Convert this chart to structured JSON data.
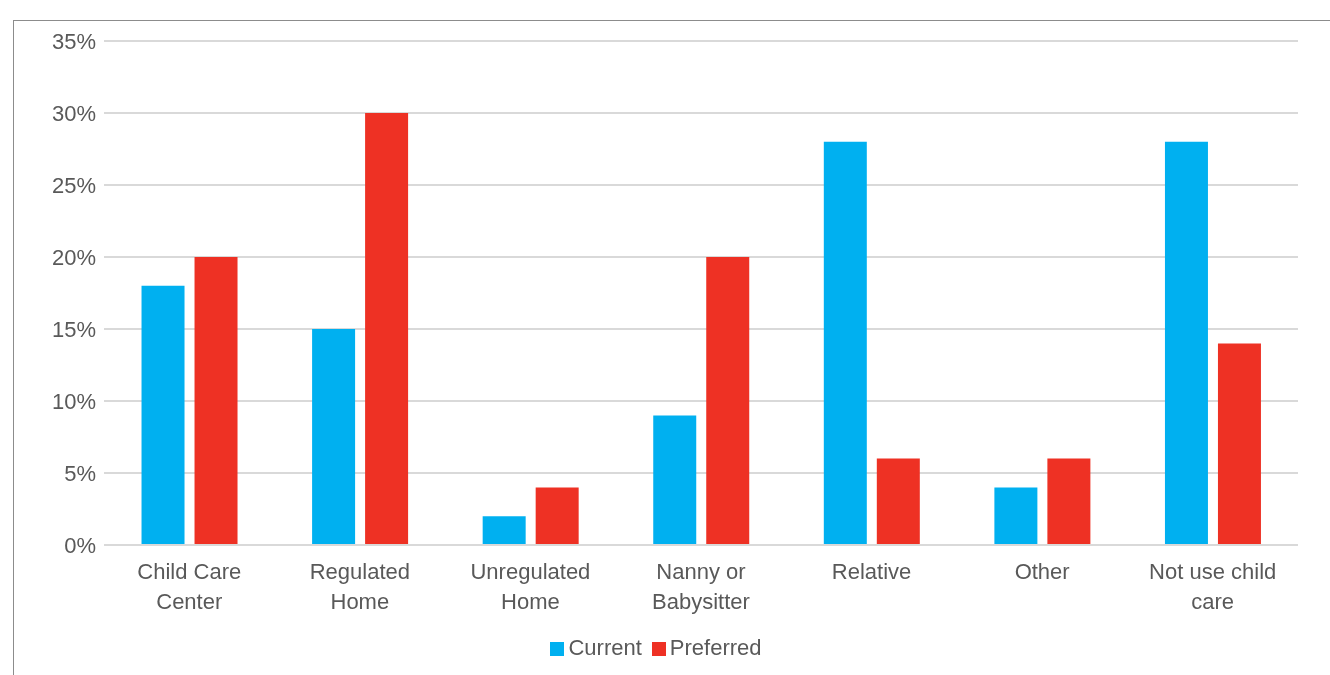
{
  "chart_data": {
    "type": "bar",
    "categories": [
      "Child Care Center",
      "Regulated Home",
      "Unregulated Home",
      "Nanny or Babysitter",
      "Relative",
      "Other",
      "Not use child care"
    ],
    "series": [
      {
        "name": "Current",
        "color": "#00b0f0",
        "values": [
          18,
          15,
          2,
          9,
          28,
          4,
          28
        ]
      },
      {
        "name": "Preferred",
        "color": "#ee3124",
        "values": [
          20,
          30,
          4,
          20,
          6,
          6,
          14
        ]
      }
    ],
    "ylim": [
      0,
      35
    ],
    "yticks": [
      {
        "value": 0,
        "label": "0%"
      },
      {
        "value": 5,
        "label": "5%"
      },
      {
        "value": 10,
        "label": "10%"
      },
      {
        "value": 15,
        "label": "15%"
      },
      {
        "value": 20,
        "label": "20%"
      },
      {
        "value": 25,
        "label": "25%"
      },
      {
        "value": 30,
        "label": "30%"
      },
      {
        "value": 35,
        "label": "35%"
      }
    ],
    "grid": "y",
    "legend": "bottom"
  }
}
